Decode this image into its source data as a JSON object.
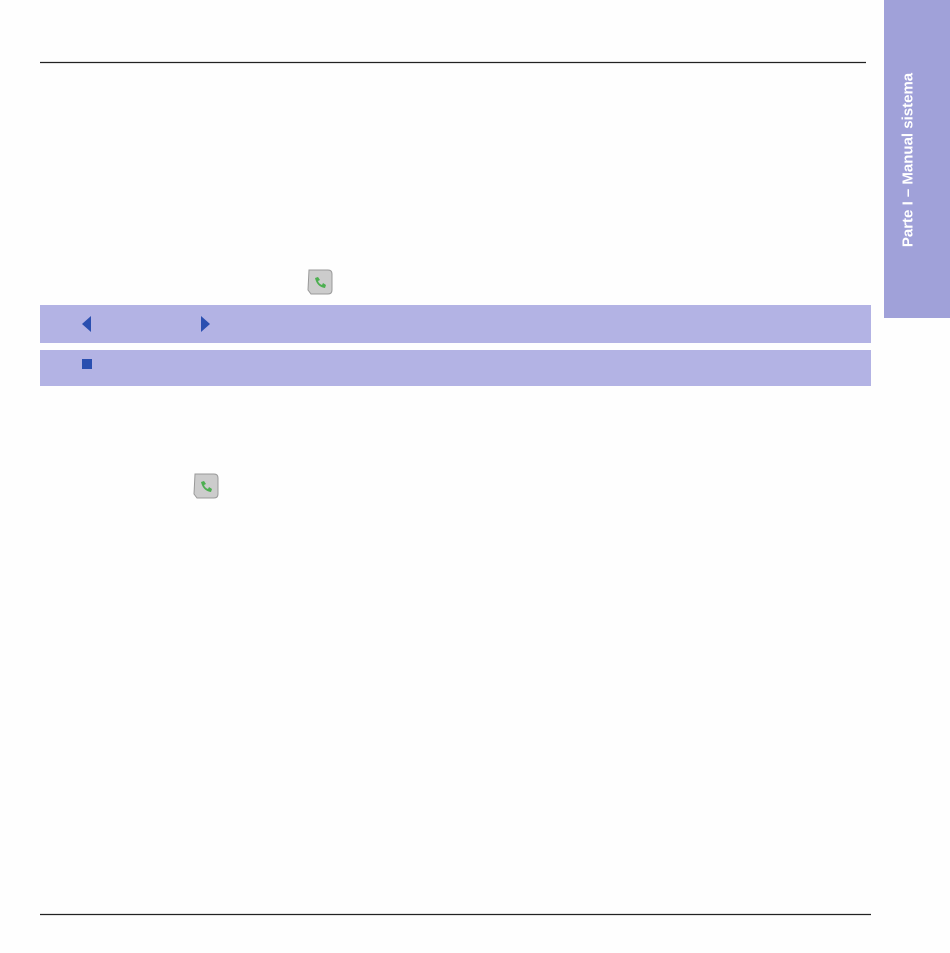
{
  "sidebar": {
    "label": "Parte I – Manual sistema"
  }
}
